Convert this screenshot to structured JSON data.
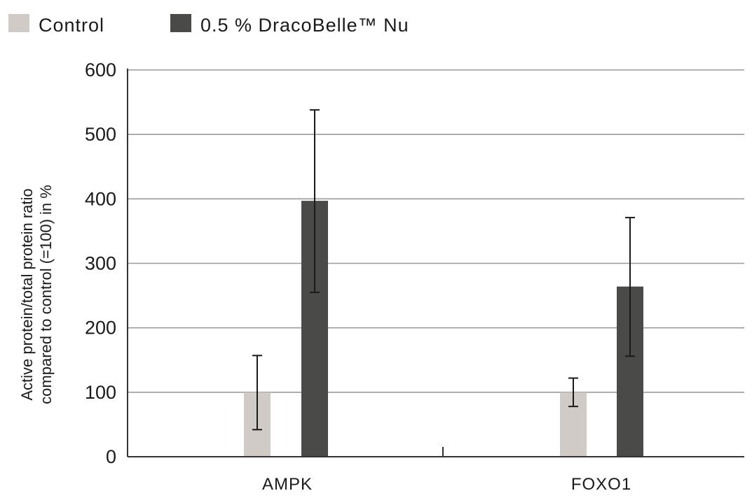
{
  "chart_data": {
    "type": "bar",
    "categories": [
      "AMPK",
      "FOXO1"
    ],
    "series": [
      {
        "name": "Control",
        "values": [
          100,
          100
        ],
        "error": [
          [
            42,
            157
          ],
          [
            78,
            122
          ]
        ],
        "color": "#d0cbc7"
      },
      {
        "name": "0.5 % DracoBelle™ Nu",
        "values": [
          397,
          264
        ],
        "error": [
          [
            255,
            538
          ],
          [
            156,
            371
          ]
        ],
        "color": "#4a4b48"
      }
    ],
    "ylabel": [
      "Active protein/total protein ratio",
      "compared to control (=100) in %"
    ],
    "xlabel": "",
    "ylim": [
      0,
      600
    ],
    "yticks": [
      0,
      100,
      200,
      300,
      400,
      500,
      600
    ],
    "grid": true,
    "legend": "top-left"
  }
}
